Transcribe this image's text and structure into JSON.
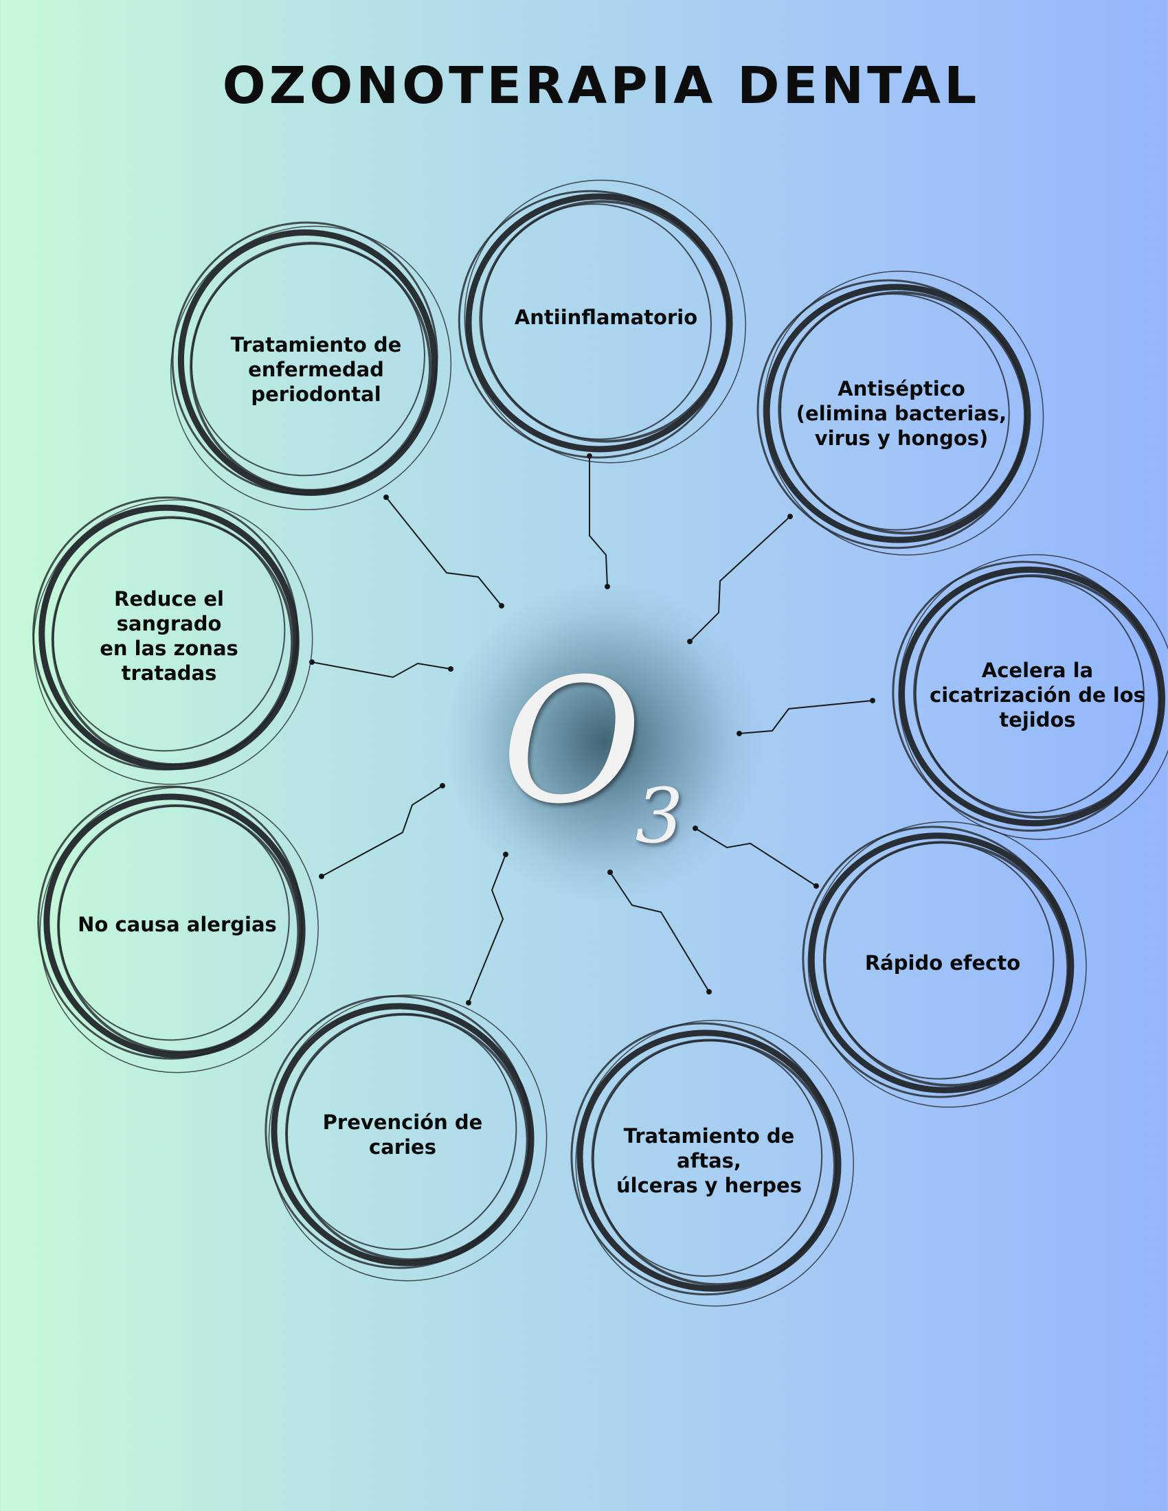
{
  "title": "OZONOTERAPIA DENTAL",
  "center": {
    "symbol": "O",
    "subscript": "3"
  },
  "nodes": [
    {
      "id": "antiinflamatorio",
      "label": "Antiinflamatorio"
    },
    {
      "id": "antiseptico",
      "label": "Antiséptico\n(elimina bacterias,\nvirus y hongos)"
    },
    {
      "id": "cicatrizacion",
      "label": "Acelera la\ncicatrización de los\ntejidos"
    },
    {
      "id": "rapido-efecto",
      "label": "Rápido efecto"
    },
    {
      "id": "aftas",
      "label": "Tratamiento de aftas,\núlceras y herpes"
    },
    {
      "id": "caries",
      "label": "Prevención de caries"
    },
    {
      "id": "alergias",
      "label": "No causa alergias"
    },
    {
      "id": "sangrado",
      "label": "Reduce el sangrado\nen las zonas tratadas"
    },
    {
      "id": "periodontal",
      "label": "Tratamiento de\nenfermedad\nperiodontal"
    }
  ]
}
